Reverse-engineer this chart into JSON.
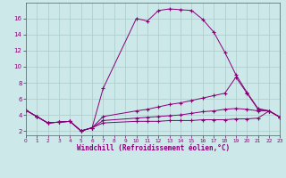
{
  "background_color": "#cce8e8",
  "grid_color": "#aacccc",
  "line_color": "#880077",
  "xlabel": "Windchill (Refroidissement éolien,°C)",
  "xlim": [
    0,
    23
  ],
  "ylim": [
    1.5,
    18
  ],
  "yticks": [
    2,
    4,
    6,
    8,
    10,
    12,
    14,
    16
  ],
  "xticks": [
    0,
    1,
    2,
    3,
    4,
    5,
    6,
    7,
    8,
    9,
    10,
    11,
    12,
    13,
    14,
    15,
    16,
    17,
    18,
    19,
    20,
    21,
    22,
    23
  ],
  "line1_x": [
    0,
    1,
    2,
    3,
    4,
    5,
    6,
    7,
    10,
    11,
    12,
    13,
    14,
    15,
    16,
    17,
    18,
    19,
    20,
    21,
    22,
    23
  ],
  "line1_y": [
    4.6,
    3.8,
    3.0,
    3.1,
    3.2,
    2.0,
    2.4,
    7.3,
    16.0,
    15.7,
    17.0,
    17.2,
    17.1,
    17.0,
    15.9,
    14.3,
    11.8,
    9.0,
    6.8,
    4.8,
    4.5,
    3.7
  ],
  "line2_x": [
    0,
    1,
    2,
    3,
    4,
    5,
    6,
    7,
    10,
    11,
    12,
    13,
    14,
    15,
    16,
    17,
    18,
    19,
    20,
    21,
    22,
    23
  ],
  "line2_y": [
    4.6,
    3.8,
    3.0,
    3.1,
    3.2,
    2.0,
    2.4,
    3.8,
    4.5,
    4.7,
    5.0,
    5.3,
    5.5,
    5.8,
    6.1,
    6.4,
    6.7,
    8.7,
    6.7,
    4.7,
    4.5,
    3.7
  ],
  "line3_x": [
    0,
    1,
    2,
    3,
    4,
    5,
    6,
    7,
    10,
    11,
    12,
    13,
    14,
    15,
    16,
    17,
    18,
    19,
    20,
    21,
    22,
    23
  ],
  "line3_y": [
    4.6,
    3.8,
    3.0,
    3.1,
    3.2,
    2.0,
    2.4,
    3.3,
    3.6,
    3.7,
    3.8,
    3.9,
    4.0,
    4.2,
    4.4,
    4.5,
    4.7,
    4.8,
    4.7,
    4.5,
    4.5,
    3.7
  ],
  "line4_x": [
    0,
    1,
    2,
    3,
    4,
    5,
    6,
    7,
    10,
    11,
    12,
    13,
    14,
    15,
    16,
    17,
    18,
    19,
    20,
    21,
    22,
    23
  ],
  "line4_y": [
    4.6,
    3.8,
    3.0,
    3.1,
    3.2,
    2.0,
    2.4,
    3.0,
    3.2,
    3.2,
    3.2,
    3.3,
    3.3,
    3.3,
    3.4,
    3.4,
    3.4,
    3.5,
    3.5,
    3.6,
    4.5,
    3.7
  ]
}
